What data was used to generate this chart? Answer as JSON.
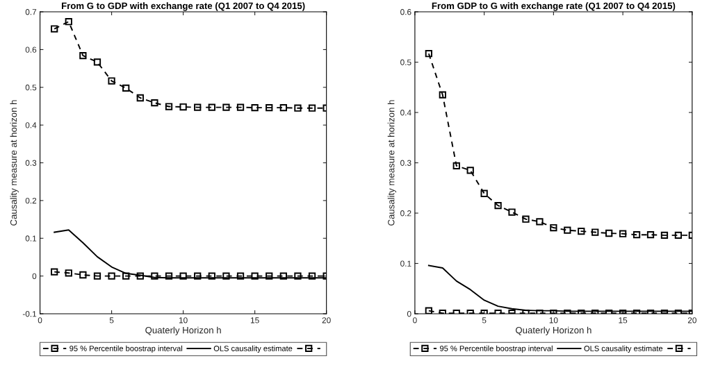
{
  "chart_data": [
    {
      "type": "line",
      "title": "From G to GDP with exchange rate (Q1 2007 to Q4 2015)",
      "xlabel": "Quaterly Horizon h",
      "ylabel": "Causality measure at horizon h",
      "x": [
        1,
        2,
        3,
        4,
        5,
        6,
        7,
        8,
        9,
        10,
        11,
        12,
        13,
        14,
        15,
        16,
        17,
        18,
        19,
        20
      ],
      "xlim": [
        0,
        20
      ],
      "xticks": [
        0,
        5,
        10,
        15,
        20
      ],
      "ylim": [
        -0.1,
        0.7
      ],
      "yticks": [
        -0.1,
        0,
        0.1,
        0.2,
        0.3,
        0.4,
        0.5,
        0.6,
        0.7
      ],
      "legend": "bottom",
      "grid": false,
      "series": [
        {
          "name": "95 % Percentile boostrap interval",
          "color": "#000000",
          "line_style": "dashed",
          "marker": "square",
          "values": [
            0.655,
            0.674,
            0.584,
            0.567,
            0.517,
            0.498,
            0.472,
            0.459,
            0.449,
            0.448,
            0.447,
            0.447,
            0.447,
            0.447,
            0.446,
            0.446,
            0.446,
            0.445,
            0.445,
            0.445
          ]
        },
        {
          "name": "OLS causality estimate",
          "color": "#000000",
          "line_style": "solid",
          "marker": "none",
          "values": [
            0.116,
            0.122,
            0.088,
            0.051,
            0.024,
            0.007,
            0.002,
            -0.004,
            -0.005,
            -0.005,
            -0.005,
            -0.005,
            -0.005,
            -0.005,
            -0.005,
            -0.005,
            -0.005,
            -0.005,
            -0.005,
            -0.005
          ]
        },
        {
          "color": "#000000",
          "line_style": "dashed",
          "marker": "square",
          "values": [
            0.011,
            0.008,
            0.003,
            0.0,
            0.0,
            0.0,
            0.0,
            0.0,
            0.0,
            0.0,
            0.0,
            0.0,
            0.0,
            0.0,
            0.0,
            0.0,
            0.0,
            0.0,
            0.0,
            0.0
          ]
        }
      ]
    },
    {
      "type": "line",
      "title": "From GDP to G with exchange rate (Q1 2007 to Q4 2015)",
      "xlabel": "Quaterly Horizon h",
      "ylabel": "Causality measure at horizon h",
      "x": [
        1,
        2,
        3,
        4,
        5,
        6,
        7,
        8,
        9,
        10,
        11,
        12,
        13,
        14,
        15,
        16,
        17,
        18,
        19,
        20
      ],
      "xlim": [
        0,
        20
      ],
      "xticks": [
        0,
        5,
        10,
        15,
        20
      ],
      "ylim": [
        0,
        0.6
      ],
      "yticks": [
        0,
        0.1,
        0.2,
        0.3,
        0.4,
        0.5,
        0.6
      ],
      "legend": "bottom",
      "grid": false,
      "series": [
        {
          "name": "95 % Percentile boostrap interval",
          "color": "#000000",
          "line_style": "dashed",
          "marker": "square",
          "values": [
            0.517,
            0.435,
            0.294,
            0.285,
            0.239,
            0.215,
            0.202,
            0.188,
            0.183,
            0.171,
            0.166,
            0.164,
            0.162,
            0.16,
            0.159,
            0.157,
            0.157,
            0.156,
            0.156,
            0.156
          ]
        },
        {
          "name": "OLS causality estimate",
          "color": "#000000",
          "line_style": "solid",
          "marker": "none",
          "values": [
            0.096,
            0.091,
            0.065,
            0.048,
            0.027,
            0.015,
            0.01,
            0.007,
            0.006,
            0.006,
            0.005,
            0.005,
            0.005,
            0.005,
            0.005,
            0.005,
            0.005,
            0.005,
            0.005,
            0.005
          ]
        },
        {
          "color": "#000000",
          "line_style": "dashed",
          "marker": "square",
          "values": [
            0.006,
            0.001,
            0.001,
            0.001,
            0.001,
            0.001,
            0.001,
            0.001,
            0.001,
            0.001,
            0.001,
            0.001,
            0.001,
            0.001,
            0.001,
            0.001,
            0.001,
            0.001,
            0.001,
            0.001
          ]
        }
      ]
    }
  ]
}
